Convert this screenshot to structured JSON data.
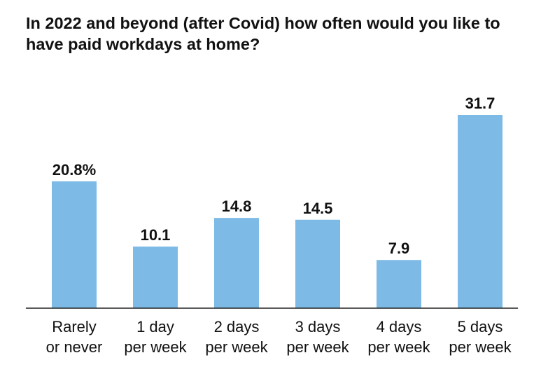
{
  "chart_data": {
    "type": "bar",
    "title": "In 2022 and beyond (after Covid) how often would you like to have paid workdays at home?",
    "categories": [
      [
        "Rarely",
        "or never"
      ],
      [
        "1 day",
        "per week"
      ],
      [
        "2 days",
        "per week"
      ],
      [
        "3 days",
        "per week"
      ],
      [
        "4 days",
        "per week"
      ],
      [
        "5 days",
        "per week"
      ]
    ],
    "values": [
      20.8,
      10.1,
      14.8,
      14.5,
      7.9,
      31.7
    ],
    "value_labels": [
      "20.8%",
      "10.1",
      "14.8",
      "14.5",
      "7.9",
      "31.7"
    ],
    "ylim": [
      0,
      31.7
    ],
    "grid": false,
    "colors": {
      "bar": "#7dbbe6",
      "text": "#111111"
    }
  }
}
